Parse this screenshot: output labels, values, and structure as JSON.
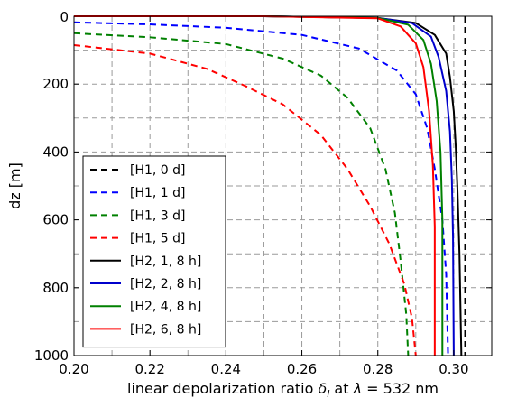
{
  "chart_data": {
    "type": "line",
    "xlabel_prefix": "linear depolarization ratio ",
    "xlabel_symbol": "δ",
    "xlabel_sub": "l",
    "xlabel_mid": " at ",
    "xlabel_lambda": "λ",
    "xlabel_suffix": " = 532 nm",
    "ylabel": "dz [m]",
    "xlim": [
      0.2,
      0.31
    ],
    "ylim": [
      1000,
      0
    ],
    "y_inverted": true,
    "xticks": [
      "0.20",
      "0.22",
      "0.24",
      "0.26",
      "0.28",
      "0.30"
    ],
    "yticks": [
      "0",
      "200",
      "400",
      "600",
      "800",
      "1000"
    ],
    "grid": true,
    "legend_position": "lower-left",
    "series": [
      {
        "name": "[H1, 0 d]",
        "color": "#000000",
        "dashed": true,
        "points": [
          [
            0.303,
            0
          ],
          [
            0.303,
            1000
          ]
        ]
      },
      {
        "name": "[H1, 1 d]",
        "color": "#0000ff",
        "dashed": true,
        "points": [
          [
            0.2,
            18
          ],
          [
            0.22,
            24
          ],
          [
            0.24,
            34
          ],
          [
            0.26,
            55
          ],
          [
            0.275,
            95
          ],
          [
            0.285,
            160
          ],
          [
            0.29,
            230
          ],
          [
            0.293,
            330
          ],
          [
            0.295,
            450
          ],
          [
            0.297,
            600
          ],
          [
            0.298,
            760
          ],
          [
            0.2985,
            1000
          ]
        ]
      },
      {
        "name": "[H1, 3 d]",
        "color": "#008000",
        "dashed": true,
        "points": [
          [
            0.2,
            50
          ],
          [
            0.22,
            62
          ],
          [
            0.24,
            82
          ],
          [
            0.255,
            125
          ],
          [
            0.265,
            175
          ],
          [
            0.272,
            240
          ],
          [
            0.278,
            330
          ],
          [
            0.282,
            450
          ],
          [
            0.2845,
            580
          ],
          [
            0.286,
            720
          ],
          [
            0.2875,
            880
          ],
          [
            0.288,
            1000
          ]
        ]
      },
      {
        "name": "[H1, 5 d]",
        "color": "#ff0000",
        "dashed": true,
        "points": [
          [
            0.2,
            85
          ],
          [
            0.22,
            110
          ],
          [
            0.235,
            155
          ],
          [
            0.245,
            205
          ],
          [
            0.255,
            260
          ],
          [
            0.265,
            350
          ],
          [
            0.272,
            450
          ],
          [
            0.278,
            560
          ],
          [
            0.283,
            670
          ],
          [
            0.287,
            790
          ],
          [
            0.289,
            890
          ],
          [
            0.29,
            1000
          ]
        ]
      },
      {
        "name": "[H2, 1, 8 h]",
        "color": "#000000",
        "dashed": false,
        "points": [
          [
            0.2,
            0
          ],
          [
            0.25,
            0
          ],
          [
            0.28,
            5
          ],
          [
            0.29,
            20
          ],
          [
            0.295,
            55
          ],
          [
            0.298,
            110
          ],
          [
            0.299,
            180
          ],
          [
            0.3,
            280
          ],
          [
            0.3005,
            380
          ],
          [
            0.301,
            520
          ],
          [
            0.3015,
            700
          ],
          [
            0.302,
            1000
          ]
        ]
      },
      {
        "name": "[H2, 2, 8 h]",
        "color": "#0000cc",
        "dashed": false,
        "points": [
          [
            0.2,
            0
          ],
          [
            0.25,
            0
          ],
          [
            0.28,
            5
          ],
          [
            0.289,
            20
          ],
          [
            0.294,
            60
          ],
          [
            0.296,
            120
          ],
          [
            0.298,
            220
          ],
          [
            0.299,
            340
          ],
          [
            0.2995,
            480
          ],
          [
            0.2998,
            650
          ],
          [
            0.3,
            1000
          ]
        ]
      },
      {
        "name": "[H2, 4, 8 h]",
        "color": "#008000",
        "dashed": false,
        "points": [
          [
            0.2,
            0
          ],
          [
            0.25,
            0
          ],
          [
            0.28,
            5
          ],
          [
            0.288,
            25
          ],
          [
            0.292,
            70
          ],
          [
            0.294,
            140
          ],
          [
            0.2955,
            250
          ],
          [
            0.2965,
            400
          ],
          [
            0.297,
            600
          ],
          [
            0.297,
            1000
          ]
        ]
      },
      {
        "name": "[H2, 6, 8 h]",
        "color": "#ff0000",
        "dashed": false,
        "points": [
          [
            0.2,
            0
          ],
          [
            0.25,
            0
          ],
          [
            0.28,
            6
          ],
          [
            0.286,
            30
          ],
          [
            0.29,
            80
          ],
          [
            0.292,
            150
          ],
          [
            0.2935,
            280
          ],
          [
            0.2945,
            440
          ],
          [
            0.295,
            620
          ],
          [
            0.295,
            1000
          ]
        ]
      }
    ]
  }
}
